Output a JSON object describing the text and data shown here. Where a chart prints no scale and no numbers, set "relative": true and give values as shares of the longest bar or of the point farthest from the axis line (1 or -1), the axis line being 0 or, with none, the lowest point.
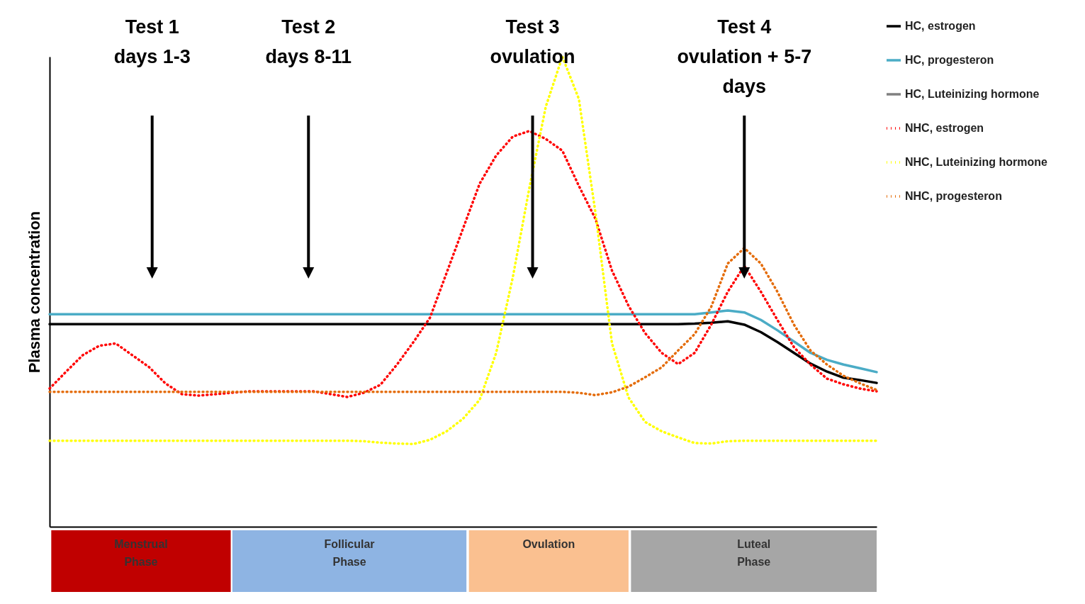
{
  "chart_data": {
    "type": "line",
    "relative": true,
    "ylabel": "Plasma concentration",
    "legend": "top right",
    "categories": [
      null,
      null,
      null,
      null,
      null,
      null,
      null,
      null,
      null,
      null,
      null,
      null,
      null,
      null,
      null,
      null,
      null,
      null,
      null,
      null,
      null,
      null,
      null,
      null,
      null,
      null,
      null,
      null,
      null,
      null,
      null,
      null,
      null,
      null,
      null,
      null,
      null,
      null,
      null,
      null,
      null,
      null,
      null,
      null,
      null,
      null,
      null,
      null,
      null,
      null,
      null
    ],
    "series": [
      {
        "name": "HC, estrogen",
        "color": "#000000",
        "line_style": "solid",
        "values": [
          0.431,
          0.431,
          0.431,
          0.431,
          0.431,
          0.431,
          0.431,
          0.431,
          0.431,
          0.431,
          0.431,
          0.431,
          0.431,
          0.431,
          0.431,
          0.431,
          0.431,
          0.431,
          0.431,
          0.431,
          0.431,
          0.431,
          0.431,
          0.431,
          0.431,
          0.431,
          0.431,
          0.431,
          0.431,
          0.431,
          0.431,
          0.431,
          0.431,
          0.431,
          0.431,
          0.431,
          0.431,
          0.431,
          0.431,
          0.432,
          0.434,
          0.437,
          0.43,
          0.414,
          0.393,
          0.37,
          0.347,
          0.33,
          0.317,
          0.312,
          0.306
        ]
      },
      {
        "name": "HC, progesteron",
        "color": "#4bacc6",
        "line_style": "solid",
        "values": [
          0.452,
          0.452,
          0.452,
          0.452,
          0.452,
          0.452,
          0.452,
          0.452,
          0.452,
          0.452,
          0.452,
          0.452,
          0.452,
          0.452,
          0.452,
          0.452,
          0.452,
          0.452,
          0.452,
          0.452,
          0.452,
          0.452,
          0.452,
          0.452,
          0.452,
          0.452,
          0.452,
          0.452,
          0.452,
          0.452,
          0.452,
          0.452,
          0.452,
          0.452,
          0.452,
          0.452,
          0.452,
          0.452,
          0.452,
          0.452,
          0.456,
          0.46,
          0.456,
          0.44,
          0.418,
          0.394,
          0.37,
          0.355,
          0.345,
          0.337,
          0.329
        ]
      },
      {
        "name": "HC, Luteinizing hormone",
        "color": "#808080",
        "line_style": "solid",
        "values": [
          null,
          null,
          null,
          null,
          null,
          null,
          null,
          null,
          null,
          null,
          null,
          null,
          null,
          null,
          null,
          null,
          null,
          null,
          null,
          null,
          null,
          null,
          null,
          null,
          null,
          null,
          null,
          null,
          null,
          null,
          null,
          null,
          null,
          null,
          null,
          null,
          null,
          null,
          null,
          null,
          null,
          null,
          null,
          null,
          null,
          null,
          null,
          null,
          null,
          null,
          null
        ]
      },
      {
        "name": "NHC, estrogen",
        "color": "#ff0000",
        "line_style": "dotted",
        "values": [
          0.294,
          0.33,
          0.365,
          0.385,
          0.39,
          0.365,
          0.34,
          0.305,
          0.282,
          0.279,
          0.282,
          0.285,
          0.288,
          0.288,
          0.288,
          0.288,
          0.288,
          0.282,
          0.276,
          0.285,
          0.302,
          0.345,
          0.393,
          0.445,
          0.54,
          0.635,
          0.73,
          0.79,
          0.83,
          0.842,
          0.825,
          0.8,
          0.725,
          0.655,
          0.545,
          0.47,
          0.412,
          0.37,
          0.346,
          0.37,
          0.43,
          0.5,
          0.555,
          0.5,
          0.44,
          0.382,
          0.345,
          0.315,
          0.303,
          0.294,
          0.288
        ]
      },
      {
        "name": "NHC, Luteinizing hormone",
        "color": "#ffff00",
        "line_style": "dotted",
        "values": [
          0.183,
          0.183,
          0.183,
          0.183,
          0.183,
          0.183,
          0.183,
          0.183,
          0.183,
          0.183,
          0.183,
          0.183,
          0.183,
          0.183,
          0.183,
          0.183,
          0.183,
          0.183,
          0.183,
          0.182,
          0.179,
          0.177,
          0.176,
          0.185,
          0.203,
          0.23,
          0.27,
          0.37,
          0.53,
          0.72,
          0.894,
          1.0,
          0.91,
          0.668,
          0.39,
          0.275,
          0.223,
          0.203,
          0.19,
          0.178,
          0.177,
          0.182,
          0.183,
          0.183,
          0.183,
          0.183,
          0.183,
          0.183,
          0.183,
          0.183,
          0.183
        ]
      },
      {
        "name": "NHC, progesteron",
        "color": "#e46c0a",
        "line_style": "dotted",
        "values": [
          0.287,
          0.287,
          0.287,
          0.287,
          0.287,
          0.287,
          0.287,
          0.287,
          0.287,
          0.287,
          0.287,
          0.287,
          0.287,
          0.287,
          0.287,
          0.287,
          0.287,
          0.287,
          0.287,
          0.287,
          0.287,
          0.287,
          0.287,
          0.287,
          0.287,
          0.287,
          0.287,
          0.287,
          0.287,
          0.287,
          0.287,
          0.287,
          0.285,
          0.28,
          0.286,
          0.298,
          0.318,
          0.339,
          0.375,
          0.41,
          0.468,
          0.56,
          0.593,
          0.56,
          0.5,
          0.43,
          0.375,
          0.345,
          0.321,
          0.305,
          0.291
        ]
      }
    ],
    "annotations": [
      "Test 1\ndays 1-3",
      "Test 2\ndays 8-11",
      "Test 3\novulation",
      "Test 4\novulation + 5-7\ndays",
      "Menstrual\nPhase",
      "Follicular\nPhase",
      "Ovulation",
      "Luteal\nPhase"
    ]
  }
}
